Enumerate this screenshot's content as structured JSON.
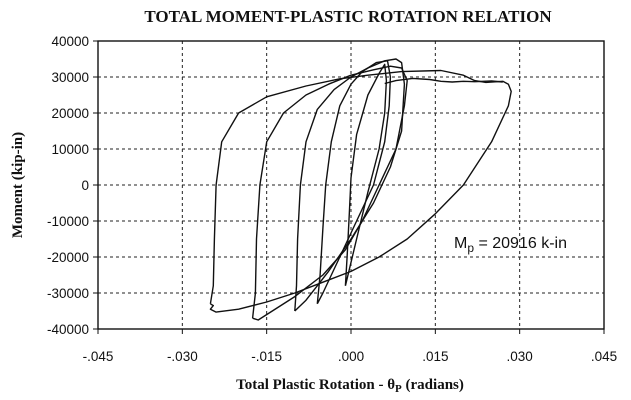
{
  "chart_data": {
    "type": "line",
    "title": "TOTAL MOMENT-PLASTIC ROTATION RELATION",
    "xlabel": "Total Plastic Rotation - θ",
    "xlabel_sub": "P",
    "xlabel_unit": "(radians)",
    "ylabel": "Moment (kip-in)",
    "xlim": [
      -0.045,
      0.045
    ],
    "ylim": [
      -40000,
      40000
    ],
    "x_ticks": [
      -0.045,
      -0.03,
      -0.015,
      0.0,
      0.015,
      0.03,
      0.045
    ],
    "x_tick_labels": [
      "-.045",
      "-.030",
      "-.015",
      ".000",
      ".015",
      ".030",
      ".045"
    ],
    "y_ticks": [
      -40000,
      -30000,
      -20000,
      -10000,
      0,
      10000,
      20000,
      30000,
      40000
    ],
    "y_tick_labels": [
      "-40000",
      "-30000",
      "-20000",
      "-10000",
      "0",
      "10000",
      "20000",
      "30000",
      "40000"
    ],
    "grid": true,
    "annotation": {
      "prefix": "M",
      "sub": "p",
      "text": " = 20916 k-in"
    },
    "series": [
      {
        "x": [
          -0.025,
          -0.0245,
          -0.0243,
          -0.024,
          -0.023,
          -0.02,
          -0.015,
          -0.008,
          -0.002,
          0.003,
          0.009,
          0.016,
          0.02,
          0.022,
          0.024,
          0.027,
          0.028,
          0.0285,
          0.028,
          0.025,
          0.02,
          0.015,
          0.01,
          0.005,
          0.0,
          -0.005,
          -0.01,
          -0.015,
          -0.02,
          -0.024,
          -0.025,
          -0.0245,
          -0.025
        ],
        "y": [
          -33000,
          -28000,
          -15000,
          0,
          12000,
          20000,
          24500,
          27500,
          29500,
          30500,
          31500,
          31800,
          30500,
          29000,
          28500,
          28800,
          28000,
          26000,
          22000,
          12000,
          0,
          -8000,
          -15000,
          -20000,
          -24000,
          -27000,
          -30000,
          -32500,
          -34500,
          -35300,
          -34500,
          -33500,
          -33000
        ]
      },
      {
        "x": [
          -0.0175,
          -0.017,
          -0.0168,
          -0.0162,
          -0.015,
          -0.012,
          -0.008,
          -0.004,
          0.0,
          0.004,
          0.007,
          0.009,
          0.01,
          0.0095,
          0.008,
          0.005,
          0.002,
          -0.001,
          -0.005,
          -0.01,
          -0.014,
          -0.0165,
          -0.0175
        ],
        "y": [
          -37000,
          -30000,
          -15000,
          0,
          12000,
          20000,
          25000,
          28000,
          30500,
          32000,
          33000,
          32500,
          29000,
          22000,
          10000,
          0,
          -10000,
          -18000,
          -25000,
          -31000,
          -35000,
          -37500,
          -37000
        ]
      },
      {
        "x": [
          -0.01,
          -0.0097,
          -0.0095,
          -0.009,
          -0.008,
          -0.006,
          -0.003,
          0.0,
          0.003,
          0.006,
          0.008,
          0.009,
          0.0095,
          0.009,
          0.007,
          0.004,
          0.0,
          -0.004,
          -0.008,
          -0.01
        ],
        "y": [
          -35000,
          -28000,
          -15000,
          0,
          12000,
          21000,
          26500,
          30000,
          32500,
          34500,
          35000,
          34000,
          28000,
          15000,
          5000,
          -5000,
          -15000,
          -24000,
          -32000,
          -35000
        ]
      },
      {
        "x": [
          -0.006,
          -0.0055,
          -0.005,
          -0.0045,
          -0.0035,
          -0.002,
          0.0,
          0.002,
          0.0045,
          0.0065,
          0.007,
          0.0068,
          0.006,
          0.004,
          0.001,
          -0.002,
          -0.005,
          -0.006
        ],
        "y": [
          -33000,
          -25000,
          -12000,
          0,
          12000,
          22000,
          28000,
          31500,
          34000,
          34500,
          30000,
          22000,
          12000,
          0,
          -10000,
          -20000,
          -30000,
          -33000
        ]
      },
      {
        "x": [
          -0.001,
          -0.0007,
          -0.0003,
          0.0,
          0.001,
          0.003,
          0.005,
          0.006,
          0.0063,
          0.006,
          0.005,
          0.003,
          0.001,
          -0.001
        ],
        "y": [
          -28000,
          -20000,
          -8000,
          2000,
          14000,
          25000,
          31000,
          33500,
          29000,
          20000,
          10000,
          -2000,
          -15000,
          -28000
        ]
      },
      {
        "x": [
          0.006,
          0.008,
          0.011,
          0.014,
          0.016,
          0.018,
          0.02,
          0.022,
          0.025,
          0.027
        ],
        "y": [
          28200,
          29000,
          29600,
          29300,
          28800,
          28600,
          28800,
          28700,
          28900,
          28600
        ]
      }
    ]
  }
}
